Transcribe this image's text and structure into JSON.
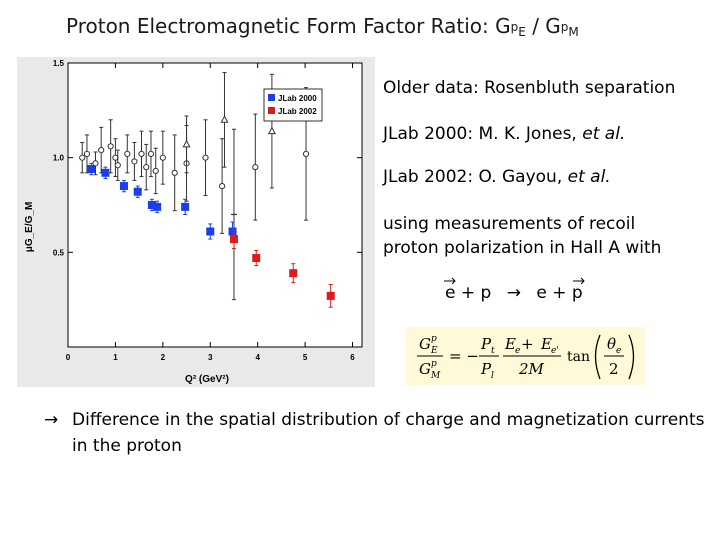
{
  "title": {
    "main": "Proton Electromagnetic Form Factor Ratio: G",
    "sup1": "p",
    "sub1": "E",
    "sep": " / G",
    "sup2": "p",
    "sub2": "M"
  },
  "annotations": {
    "older": "Older data: Rosenbluth separation",
    "jlab2000_prefix": "JLab 2000: M. K. Jones, ",
    "jlab2000_italic": "et al.",
    "jlab2002_prefix": "JLab 2002: O. Gayou, ",
    "jlab2002_italic": "et al.",
    "method_line1": "using measurements of recoil",
    "method_line2": "proton polarization in Hall A with"
  },
  "reaction": {
    "e1": "e",
    "plus1": " + p ",
    "arrow": "→",
    "e2": " e",
    "plus2": " + p"
  },
  "formula": {
    "lhs_num": "G",
    "lhs_num_sub": "E",
    "lhs_num_sup": "p",
    "lhs_den": "G",
    "lhs_den_sub": "M",
    "lhs_den_sup": "p",
    "equals_minus": "= −",
    "pt": "P",
    "pt_sub": "t",
    "pl": "P",
    "pl_sub": "l",
    "ee_num": "E",
    "ee_sub": "e",
    "plus": " + ",
    "eep_sub": "e'",
    "two_m": "2M",
    "tan": "tan",
    "theta": "θ",
    "theta_sub": "e",
    "two": "2"
  },
  "conclusion": {
    "arrow": "→",
    "text": "Difference in the spatial distribution of charge and magnetization currents in the proton"
  },
  "chart_data": {
    "type": "scatter",
    "xlabel": "Q² (GeV²)",
    "ylabel": "μG_E/G_M",
    "xlim": [
      0,
      6.2
    ],
    "ylim": [
      0,
      1.5
    ],
    "x_ticks": [
      "0",
      "1",
      "2",
      "3",
      "4",
      "5",
      "6"
    ],
    "x_tick_values": [
      0,
      1,
      2,
      3,
      4,
      5,
      6
    ],
    "y_ticks": [
      "0.5",
      "1.0",
      "1.5"
    ],
    "y_tick_values": [
      0.5,
      1.0,
      1.5
    ],
    "legend": {
      "placement": "top-right",
      "entries": [
        "JLab 2000",
        "JLab 2002"
      ]
    },
    "series": [
      {
        "name": "JLab 2000",
        "marker": "square",
        "color": "#1b3ee8",
        "points": [
          {
            "x": 0.49,
            "y": 0.94,
            "err": 0.03
          },
          {
            "x": 0.79,
            "y": 0.92,
            "err": 0.03
          },
          {
            "x": 1.18,
            "y": 0.85,
            "err": 0.03
          },
          {
            "x": 1.47,
            "y": 0.82,
            "err": 0.03
          },
          {
            "x": 1.77,
            "y": 0.75,
            "err": 0.03
          },
          {
            "x": 1.88,
            "y": 0.74,
            "err": 0.03
          },
          {
            "x": 2.47,
            "y": 0.74,
            "err": 0.04
          },
          {
            "x": 3.0,
            "y": 0.61,
            "err": 0.04
          },
          {
            "x": 3.47,
            "y": 0.61,
            "err": 0.05
          }
        ]
      },
      {
        "name": "JLab 2002",
        "marker": "square",
        "color": "#e01a1a",
        "points": [
          {
            "x": 3.5,
            "y": 0.57,
            "err": 0.05
          },
          {
            "x": 3.97,
            "y": 0.47,
            "err": 0.04
          },
          {
            "x": 4.75,
            "y": 0.39,
            "err": 0.05
          },
          {
            "x": 5.54,
            "y": 0.27,
            "err": 0.06
          }
        ]
      },
      {
        "name": "",
        "marker": "open-circle",
        "color": "#333333",
        "points": [
          {
            "x": 0.3,
            "y": 1.0,
            "err": 0.08
          },
          {
            "x": 0.4,
            "y": 1.02,
            "err": 0.1
          },
          {
            "x": 0.58,
            "y": 0.97,
            "err": 0.06
          },
          {
            "x": 0.7,
            "y": 1.04,
            "err": 0.12
          },
          {
            "x": 0.9,
            "y": 1.06,
            "err": 0.14
          },
          {
            "x": 1.0,
            "y": 1.0,
            "err": 0.1
          },
          {
            "x": 1.05,
            "y": 0.96,
            "err": 0.08
          },
          {
            "x": 1.25,
            "y": 1.02,
            "err": 0.1
          },
          {
            "x": 1.4,
            "y": 0.98,
            "err": 0.1
          },
          {
            "x": 1.55,
            "y": 1.02,
            "err": 0.12
          },
          {
            "x": 1.65,
            "y": 0.95,
            "err": 0.12
          },
          {
            "x": 1.75,
            "y": 1.02,
            "err": 0.12
          },
          {
            "x": 1.85,
            "y": 0.93,
            "err": 0.12
          },
          {
            "x": 2.0,
            "y": 1.0,
            "err": 0.14
          },
          {
            "x": 2.25,
            "y": 0.92,
            "err": 0.2
          },
          {
            "x": 2.5,
            "y": 0.97,
            "err": 0.2
          },
          {
            "x": 2.9,
            "y": 1.0,
            "err": 0.2
          },
          {
            "x": 3.25,
            "y": 0.85,
            "err": 0.25
          },
          {
            "x": 3.95,
            "y": 0.95,
            "err": 0.28
          },
          {
            "x": 5.02,
            "y": 1.02,
            "err": 0.35
          }
        ]
      },
      {
        "name": "",
        "marker": "open-triangle",
        "color": "#333333",
        "points": [
          {
            "x": 2.5,
            "y": 1.07,
            "err": 0.15
          },
          {
            "x": 3.3,
            "y": 1.2,
            "err": 0.25
          },
          {
            "x": 4.3,
            "y": 1.14,
            "err": 0.3
          }
        ]
      },
      {
        "name": "",
        "marker": "cross",
        "color": "#333333",
        "points": [
          {
            "x": 3.5,
            "y": 0.7,
            "err": 0.45
          }
        ]
      }
    ]
  }
}
